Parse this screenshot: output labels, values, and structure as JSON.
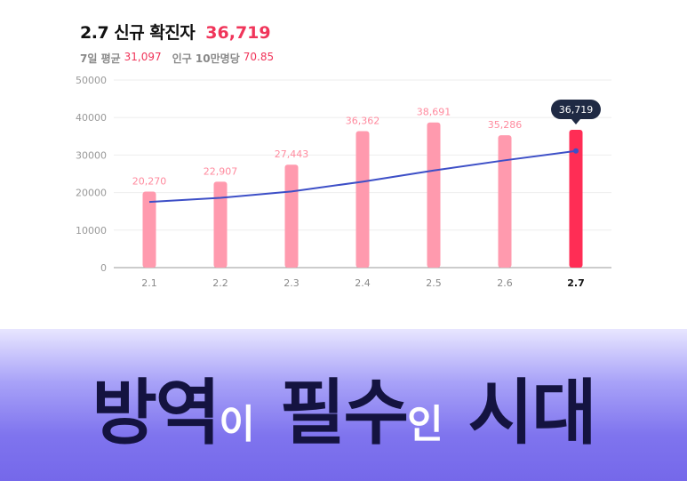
{
  "header": {
    "title": "2.7 신규 확진자",
    "value": "36,719",
    "avg_label": "7일 평균",
    "avg_value": "31,097",
    "per_label": "인구 10만명당",
    "per_value": "70.85"
  },
  "chart_data": {
    "type": "bar",
    "categories": [
      "2.1",
      "2.2",
      "2.3",
      "2.4",
      "2.5",
      "2.6",
      "2.7"
    ],
    "values": [
      20270,
      22907,
      27443,
      36362,
      38691,
      35286,
      36719
    ],
    "value_labels": [
      "20,270",
      "22,907",
      "27,443",
      "36,362",
      "38,691",
      "35,286",
      "36,719"
    ],
    "highlight_index": 6,
    "yticks": [
      "50000",
      "40000",
      "30000",
      "20000",
      "10000",
      "0"
    ],
    "ylim": [
      0,
      50000
    ],
    "line_series": {
      "type": "line",
      "values": [
        17500,
        18600,
        20300,
        22900,
        25900,
        28600,
        31097
      ]
    },
    "colors": {
      "bar": "#ff9aae",
      "highlight_bar": "#ff2d55",
      "value_label": "#ff8a9e",
      "line": "#3d4fc7",
      "tooltip": "#1f2a44"
    }
  },
  "banner": {
    "w1": "방역",
    "w2": "이",
    "w3": "필수",
    "w4": "인",
    "w5": "시대"
  }
}
